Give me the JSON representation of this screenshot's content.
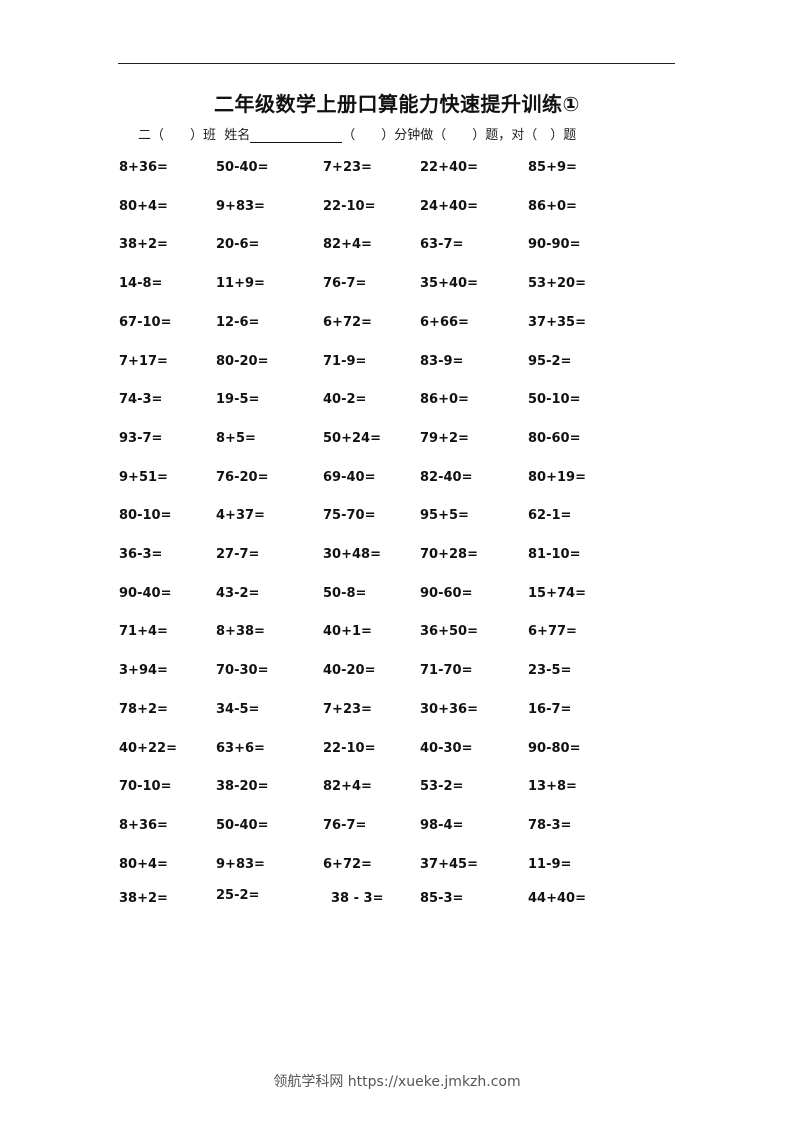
{
  "title": "二年级数学上册口算能力快速提升训练①",
  "info_line": {
    "part1": "二（　　）班  姓名",
    "part2": "（　　）分钟做（　　）题，对（　）题"
  },
  "problems": [
    [
      "8+36=",
      "50-40=",
      "7+23=",
      "22+40=",
      "85+9="
    ],
    [
      "80+4=",
      "9+83=",
      "22-10=",
      "24+40=",
      "86+0="
    ],
    [
      "38+2=",
      "20-6=",
      "82+4=",
      "63-7=",
      "90-90="
    ],
    [
      "14-8=",
      "11+9=",
      "76-7=",
      "35+40=",
      "53+20="
    ],
    [
      "67-10=",
      "12-6=",
      "6+72=",
      "6+66=",
      "37+35="
    ],
    [
      "7+17=",
      "80-20=",
      "71-9=",
      "83-9=",
      "95-2="
    ],
    [
      "74-3=",
      "19-5=",
      "40-2=",
      "86+0=",
      "50-10="
    ],
    [
      "93-7=",
      "8+5=",
      "50+24=",
      "79+2=",
      "80-60="
    ],
    [
      "9+51=",
      "76-20=",
      "69-40=",
      "82-40=",
      "80+19="
    ],
    [
      "80-10=",
      "4+37=",
      "75-70=",
      "95+5=",
      "62-1="
    ],
    [
      "36-3=",
      "27-7=",
      "30+48=",
      "70+28=",
      "81-10="
    ],
    [
      "90-40=",
      "43-2=",
      "50-8=",
      "90-60=",
      "15+74="
    ],
    [
      "71+4=",
      "8+38=",
      "40+1=",
      "36+50=",
      "6+77="
    ],
    [
      "3+94=",
      "70-30=",
      "40-20=",
      "71-70=",
      "23-5="
    ],
    [
      "78+2=",
      "34-5=",
      "7+23=",
      "30+36=",
      "16-7="
    ],
    [
      "40+22=",
      "63+6=",
      "22-10=",
      "40-30=",
      "90-80="
    ],
    [
      "70-10=",
      "38-20=",
      "82+4=",
      "53-2=",
      "13+8="
    ],
    [
      "8+36=",
      "50-40=",
      "76-7=",
      "98-4=",
      "78-3="
    ],
    [
      "80+4=",
      "9+83=",
      "6+72=",
      "37+45=",
      "11-9="
    ],
    [
      "38+2=",
      "25-2=",
      "38 - 3=",
      "85-3=",
      "44+40="
    ]
  ],
  "footer": "领航学科网 https://xueke.jmkzh.com"
}
